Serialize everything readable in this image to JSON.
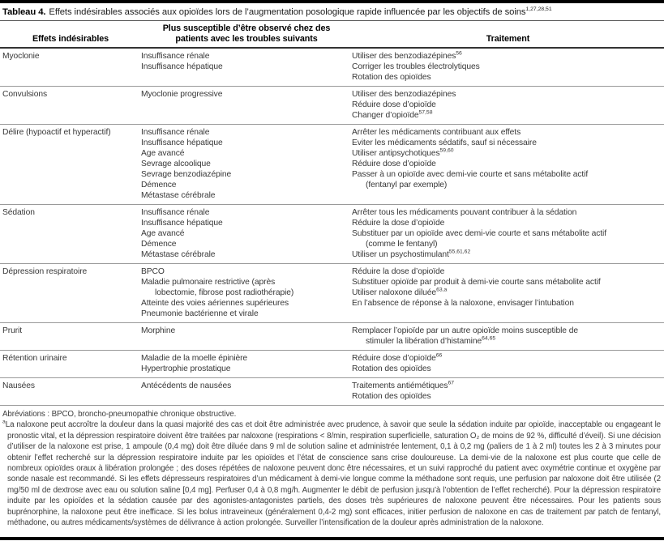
{
  "title": {
    "label": "Tableau 4.",
    "text": "Effets indésirables associés aux opioïdes lors de l’augmentation posologique rapide influencée par les objectifs de soins",
    "sup": "1,27,28,51"
  },
  "header": {
    "col1": "Effets indésirables",
    "col2_line1": "Plus susceptible d’être observé chez des",
    "col2_line2": "patients avec les troubles suivants",
    "col3": "Traitement"
  },
  "rows": [
    {
      "effect": "Myoclonie",
      "conditions": [
        {
          "text": "Insuffisance rénale"
        },
        {
          "text": "Insuffisance hépatique"
        }
      ],
      "treatments": [
        {
          "text": "Utiliser des benzodiazépines",
          "sup": "56"
        },
        {
          "text": "Corriger les troubles électrolytiques"
        },
        {
          "text": "Rotation des opioïdes"
        }
      ]
    },
    {
      "effect": "Convulsions",
      "conditions": [
        {
          "text": "Myoclonie progressive"
        }
      ],
      "treatments": [
        {
          "text": "Utiliser des benzodiazépines"
        },
        {
          "text": "Réduire dose d’opioïde"
        },
        {
          "text": "Changer d’opioïde",
          "sup": "57,58"
        }
      ]
    },
    {
      "effect": "Délire (hypoactif et hyperactif)",
      "conditions": [
        {
          "text": "Insuffisance rénale"
        },
        {
          "text": "Insuffisance hépatique"
        },
        {
          "text": "Age avancé"
        },
        {
          "text": "Sevrage alcoolique"
        },
        {
          "text": "Sevrage benzodiazépine"
        },
        {
          "text": "Démence"
        },
        {
          "text": "Métastase cérébrale"
        }
      ],
      "treatments": [
        {
          "text": "Arrêter les médicaments contribuant aux effets"
        },
        {
          "text": "Eviter les médicaments sédatifs, sauf si nécessaire"
        },
        {
          "text": "Utiliser antipsychotiques",
          "sup": "59,60"
        },
        {
          "text": "Réduire dose d’opioïde"
        },
        {
          "text": "Passer à un opioïde avec demi-vie courte et sans métabolite actif"
        },
        {
          "text": "(fentanyl par exemple)",
          "indent": true
        }
      ]
    },
    {
      "effect": "Sédation",
      "conditions": [
        {
          "text": "Insuffisance rénale"
        },
        {
          "text": "Insuffisance hépatique"
        },
        {
          "text": "Age avancé"
        },
        {
          "text": "Démence"
        },
        {
          "text": "Métastase cérébrale"
        }
      ],
      "treatments": [
        {
          "text": "Arrêter tous les médicaments pouvant contribuer à la sédation"
        },
        {
          "text": "Réduire la dose d’opioïde"
        },
        {
          "text": "Substituer par un opioïde avec demi-vie courte et sans métabolite actif"
        },
        {
          "text": "(comme le fentanyl)",
          "indent": true
        },
        {
          "text": "Utiliser un psychostimulant",
          "sup": "55,61,62"
        }
      ]
    },
    {
      "effect": "Dépression respiratoire",
      "conditions": [
        {
          "text": "BPCO"
        },
        {
          "text": "Maladie pulmonaire restrictive (après"
        },
        {
          "text": "lobectomie, fibrose post radiothérapie)",
          "indent": true
        },
        {
          "text": "Atteinte des voies aériennes supérieures"
        },
        {
          "text": "Pneumonie bactérienne et virale"
        }
      ],
      "treatments": [
        {
          "text": "Réduire la dose d’opioïde"
        },
        {
          "text": "Substituer opioïde par produit à demi-vie courte sans métabolite actif"
        },
        {
          "text": "Utiliser naloxone diluée",
          "sup": "63,a"
        },
        {
          "text": "En l’absence de réponse à la naloxone, envisager l’intubation"
        }
      ]
    },
    {
      "effect": "Prurit",
      "conditions": [
        {
          "text": "Morphine"
        }
      ],
      "treatments": [
        {
          "text": "Remplacer l’opioïde par un autre opioïde moins susceptible de"
        },
        {
          "text": "stimuler la libération d’histamine",
          "sup": "64,65",
          "indent": true
        }
      ]
    },
    {
      "effect": "Rétention urinaire",
      "conditions": [
        {
          "text": "Maladie de la moelle épinière"
        },
        {
          "text": "Hypertrophie prostatique"
        }
      ],
      "treatments": [
        {
          "text": "Réduire dose d’opioïde",
          "sup": "66"
        },
        {
          "text": "Rotation des opioïdes"
        }
      ]
    },
    {
      "effect": "Nausées",
      "conditions": [
        {
          "text": "Antécédents de nausées"
        }
      ],
      "treatments": [
        {
          "text": "Traitements antiémétiques",
          "sup": "67"
        },
        {
          "text": "Rotation des opioïdes"
        }
      ]
    }
  ],
  "footnotes": {
    "abbreviations": "Abréviations : BPCO, broncho-pneumopathie chronique obstructive.",
    "note_marker": "a",
    "note_text": "La naloxone peut accroître la douleur dans la quasi majorité des cas et doit être administrée avec prudence, à savoir que seule la sédation induite par opioïde, inacceptable ou engageant le pronostic vital, et la dépression respiratoire doivent être traitées par naloxone (respirations < 8/min, respiration superficielle, saturation O₂ de moins de 92 %, difficulté d’éveil). Si une décision d’utiliser de la naloxone est prise, 1 ampoule (0,4 mg) doit être diluée dans 9 ml de solution saline et administrée lentement, 0,1 à 0,2 mg (paliers de 1 à 2 ml) toutes les 2 à 3 minutes pour obtenir l’effet recherché sur la dépression respiratoire induite par les opioïdes et l’état de conscience sans crise douloureuse. La demi-vie de la naloxone est plus courte que celle de nombreux opioïdes oraux à libération prolongée ; des doses répétées de naloxone peuvent donc être nécessaires, et un suivi rapproché du patient avec oxymétrie continue et oxygène par sonde nasale est recommandé. Si les effets dépresseurs respiratoires d’un médicament à demi-vie longue comme la méthadone sont requis, une perfusion par naloxone doit être utilisée (2 mg/50 ml de dextrose avec eau ou solution saline [0,4 mg]. Perfuser 0,4 à 0,8 mg/h. Augmenter le débit de perfusion jusqu’à l’obtention de l’effet recherché). Pour la dépression respiratoire induite par les opioïdes et la sédation causée par des agonistes-antagonistes partiels, des doses très supérieures de naloxone peuvent être nécessaires. Pour les patients sous buprénorphine, la naloxone peut être inefficace. Si les bolus intraveineux (généralement 0,4-2 mg) sont efficaces, initier perfusion de naloxone en cas de traitement par patch de fentanyl, méthadone, ou autres médicaments/systèmes de délivrance à action prolongée. Surveiller l’intensification de la douleur après administration de la naloxone."
  }
}
